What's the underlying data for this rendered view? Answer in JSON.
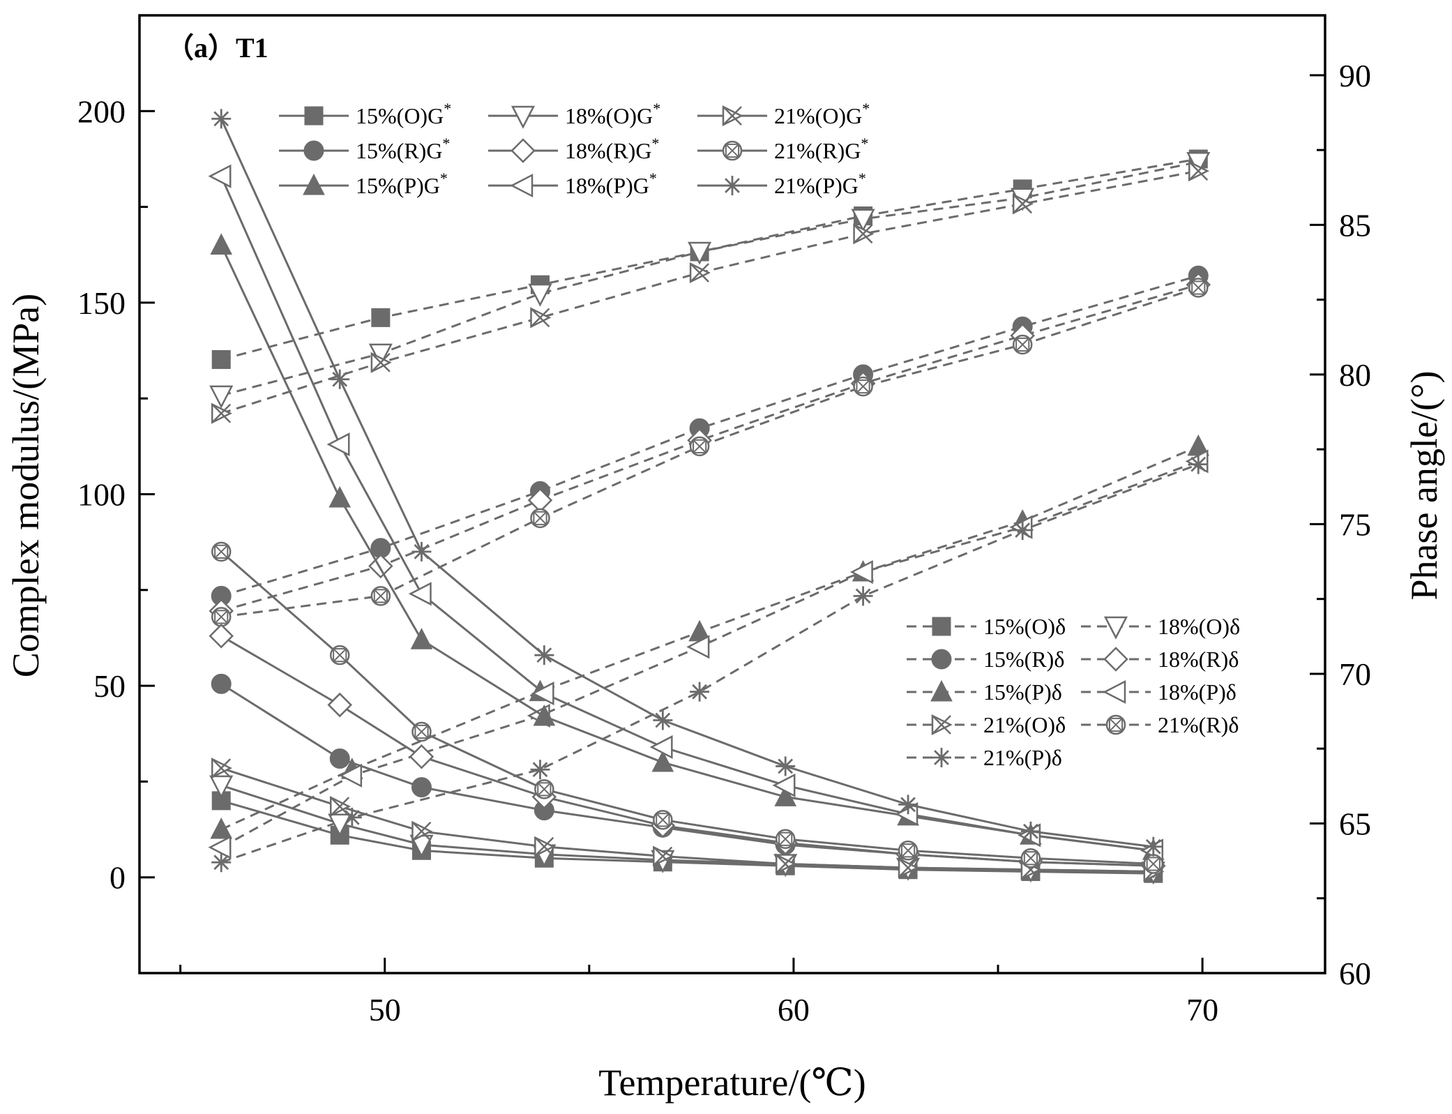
{
  "chart_data": {
    "type": "line",
    "panel_label": "（a）T1",
    "xlabel": "Temperature/(℃)",
    "ylabel_left": "Complex modulus/(MPa)",
    "ylabel_right": "Phase angle/(°)",
    "xlim": [
      44,
      73
    ],
    "ylim_left": [
      -25,
      225
    ],
    "ylim_right": [
      60,
      92
    ],
    "x_ticks": [
      "50",
      "60",
      "70"
    ],
    "y_left_ticks": [
      "0",
      "50",
      "100",
      "150",
      "200"
    ],
    "y_right_ticks": [
      "60",
      "65",
      "70",
      "75",
      "80",
      "85",
      "90"
    ],
    "color": "#6b6b6b",
    "modulus_series": [
      {
        "name": "15%(O)G",
        "sup": "*",
        "marker": "square",
        "x": [
          46,
          48.9,
          50.9,
          53.9,
          56.8,
          59.8,
          62.8,
          65.8,
          68.8
        ],
        "values": [
          20,
          11,
          7,
          5,
          4,
          3,
          2,
          1.5,
          1
        ]
      },
      {
        "name": "15%(R)G",
        "sup": "*",
        "marker": "circle",
        "x": [
          46,
          48.9,
          50.9,
          53.9,
          56.8,
          59.8,
          62.8,
          65.8,
          68.8
        ],
        "values": [
          50.5,
          31,
          23.5,
          17.5,
          13,
          8.5,
          6,
          4,
          3
        ]
      },
      {
        "name": "15%(P)G",
        "sup": "*",
        "marker": "triangle",
        "x": [
          46,
          48.9,
          50.9,
          53.9,
          56.8,
          59.8,
          62.8,
          65.8,
          68.8
        ],
        "values": [
          165,
          99,
          62,
          42,
          30,
          21,
          16,
          11,
          7
        ]
      },
      {
        "name": "18%(O)G",
        "sup": "*",
        "marker": "triangle-down",
        "x": [
          46,
          48.9,
          50.9,
          53.9,
          56.8,
          59.8,
          62.8,
          65.8,
          68.8
        ],
        "values": [
          24,
          14,
          8.5,
          6,
          4.5,
          3.5,
          2.5,
          2,
          1.5
        ]
      },
      {
        "name": "18%(R)G",
        "sup": "*",
        "marker": "diamond",
        "x": [
          46,
          48.9,
          50.9,
          53.9,
          56.8,
          59.8,
          62.8,
          65.8,
          68.8
        ],
        "values": [
          63,
          45,
          31.5,
          21,
          13.5,
          9,
          6,
          4,
          3
        ]
      },
      {
        "name": "18%(P)G",
        "sup": "*",
        "marker": "triangle-left",
        "x": [
          46,
          48.9,
          50.9,
          53.9,
          56.8,
          59.8,
          62.8,
          65.8,
          68.8
        ],
        "values": [
          183,
          113,
          74,
          48,
          34,
          24,
          16.5,
          11,
          7
        ]
      },
      {
        "name": "21%(O)G",
        "sup": "*",
        "marker": "x-triangle",
        "x": [
          46,
          48.9,
          50.9,
          53.9,
          56.8,
          59.8,
          62.8,
          65.8,
          68.8
        ],
        "values": [
          28.5,
          18.5,
          12,
          8,
          5.5,
          3.5,
          2.5,
          2,
          1.5
        ]
      },
      {
        "name": "21%(R)G",
        "sup": "*",
        "marker": "crossed-circle",
        "x": [
          46,
          48.9,
          50.9,
          53.9,
          56.8,
          59.8,
          62.8,
          65.8,
          68.8
        ],
        "values": [
          85,
          58,
          38,
          23,
          15,
          10,
          7,
          5,
          3.5
        ]
      },
      {
        "name": "21%(P)G",
        "sup": "*",
        "marker": "star",
        "x": [
          46,
          48.9,
          50.9,
          53.9,
          56.8,
          59.8,
          62.8,
          65.8,
          68.8
        ],
        "values": [
          198,
          130,
          85,
          58,
          41,
          29,
          19,
          12,
          8
        ]
      }
    ],
    "phase_series": [
      {
        "name": "15%(O)δ",
        "marker": "square",
        "x": [
          46,
          49.9,
          53.8,
          57.7,
          61.7,
          65.6,
          69.9
        ],
        "values": [
          80.5,
          81.9,
          83.0,
          84.1,
          85.3,
          86.2,
          87.2
        ]
      },
      {
        "name": "15%(R)δ",
        "marker": "circle",
        "x": [
          46,
          49.9,
          53.8,
          57.7,
          61.7,
          65.6,
          69.9
        ],
        "values": [
          72.6,
          74.2,
          76.1,
          78.2,
          80.0,
          81.6,
          83.3
        ]
      },
      {
        "name": "15%(P)δ",
        "marker": "triangle",
        "x": [
          46,
          49.2,
          53.8,
          57.7,
          61.7,
          65.6,
          69.9
        ],
        "values": [
          64.8,
          66.8,
          69.4,
          71.4,
          73.4,
          75.1,
          77.6
        ]
      },
      {
        "name": "18%(O)δ",
        "marker": "triangle-down",
        "x": [
          46,
          49.9,
          53.8,
          57.7,
          61.7,
          65.6,
          69.9
        ],
        "values": [
          79.3,
          80.7,
          82.7,
          84.1,
          85.2,
          85.9,
          87.1
        ]
      },
      {
        "name": "18%(R)δ",
        "marker": "diamond",
        "x": [
          46,
          49.9,
          53.8,
          57.7,
          61.7,
          65.6,
          69.9
        ],
        "values": [
          72.1,
          73.6,
          75.8,
          77.8,
          79.7,
          81.3,
          83.0
        ]
      },
      {
        "name": "18%(P)δ",
        "marker": "triangle-left",
        "x": [
          46,
          49.2,
          53.8,
          57.7,
          61.7,
          65.6,
          69.9
        ],
        "values": [
          64.2,
          66.6,
          68.6,
          70.9,
          73.4,
          74.9,
          77.1
        ]
      },
      {
        "name": "21%(O)δ",
        "marker": "x-triangle",
        "x": [
          46,
          49.9,
          53.8,
          57.7,
          61.7,
          65.6,
          69.9
        ],
        "values": [
          78.7,
          80.4,
          81.9,
          83.4,
          84.7,
          85.7,
          86.8
        ]
      },
      {
        "name": "21%(R)δ",
        "marker": "crossed-circle",
        "x": [
          46,
          49.9,
          53.8,
          57.7,
          61.7,
          65.6,
          69.9
        ],
        "values": [
          71.9,
          72.6,
          75.2,
          77.6,
          79.6,
          81.0,
          82.9
        ]
      },
      {
        "name": "21%(P)δ",
        "marker": "star",
        "x": [
          46,
          49.2,
          53.8,
          57.7,
          61.7,
          65.6,
          69.9
        ],
        "values": [
          63.7,
          65.2,
          66.8,
          69.4,
          72.6,
          74.8,
          77.0
        ]
      }
    ]
  }
}
